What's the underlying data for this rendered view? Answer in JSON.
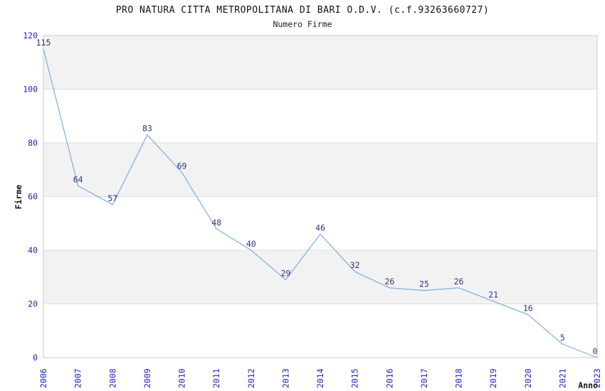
{
  "header": {
    "title": "PRO NATURA CITTA METROPOLITANA DI BARI O.D.V. (c.f.93263660727)",
    "subtitle": "Numero Firme"
  },
  "chart_data": {
    "type": "line",
    "title": "PRO NATURA CITTA METROPOLITANA DI BARI O.D.V. (c.f.93263660727)",
    "subtitle": "Numero Firme",
    "xlabel": "Anno",
    "ylabel": "Firme",
    "categories": [
      "2006",
      "2007",
      "2008",
      "2009",
      "2010",
      "2011",
      "2012",
      "2013",
      "2014",
      "2015",
      "2016",
      "2017",
      "2018",
      "2019",
      "2020",
      "2021",
      "2023"
    ],
    "values": [
      115,
      64,
      57,
      83,
      69,
      48,
      40,
      29,
      46,
      32,
      26,
      25,
      26,
      21,
      16,
      5,
      0
    ],
    "ylim": [
      0,
      120
    ],
    "yticks": [
      0,
      20,
      40,
      60,
      80,
      100,
      120
    ],
    "grid": true,
    "legend": "none",
    "band_fill": "alternating horizontal bands, gray between odd tick pairs",
    "colors": {
      "line": "#7aaee6",
      "tick_labels": "#2222cc",
      "data_labels": "#333380",
      "band": "#f2f2f2",
      "gridline": "#dcdcdc",
      "border": "#c9c9c9",
      "axis_titles": "#111111",
      "title": "#111111"
    }
  }
}
